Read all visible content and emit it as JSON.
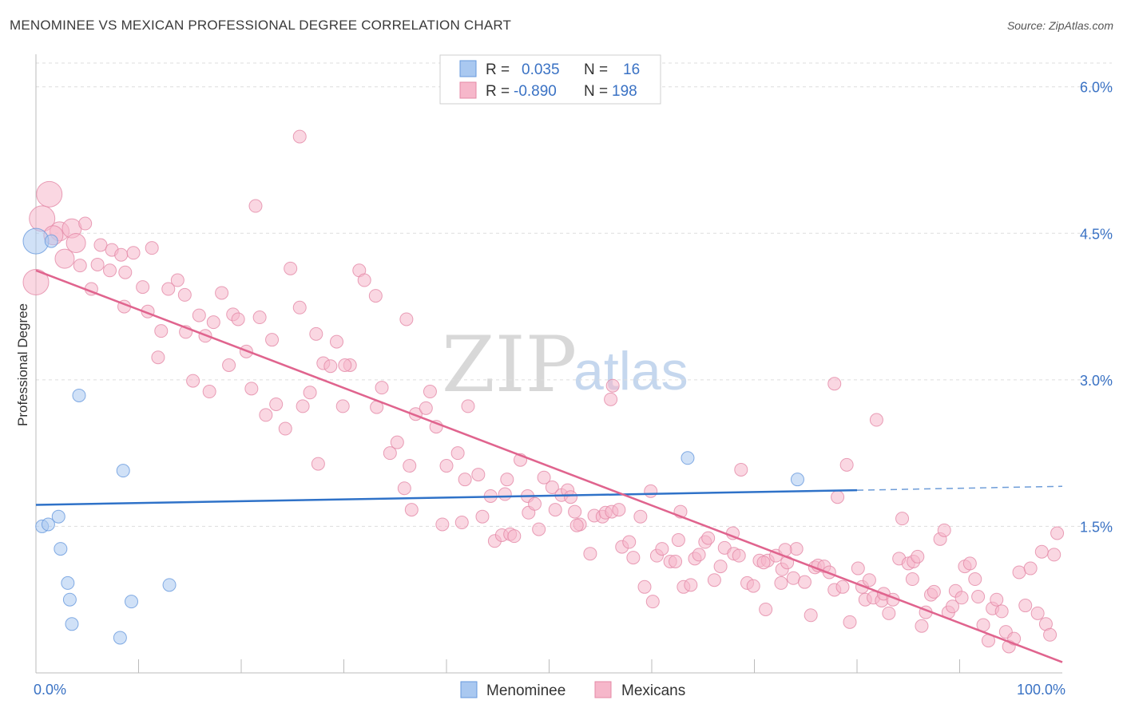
{
  "title": "MENOMINEE VS MEXICAN PROFESSIONAL DEGREE CORRELATION CHART",
  "source": "Source: ZipAtlas.com",
  "watermark": {
    "part1": "ZIP",
    "part2": "atlas"
  },
  "legend_stats": [
    {
      "r_label": "R =",
      "r_value": "0.035",
      "n_label": "N =",
      "n_value": "16",
      "color": "#a9c8f0",
      "stroke": "#6699dd"
    },
    {
      "r_label": "R =",
      "r_value": "-0.890",
      "n_label": "N =",
      "n_value": "198",
      "color": "#f6b7ca",
      "stroke": "#e488a6"
    }
  ],
  "legend_bottom": [
    {
      "label": "Menominee",
      "color": "#a9c8f0",
      "stroke": "#6699dd"
    },
    {
      "label": "Mexicans",
      "color": "#f6b7ca",
      "stroke": "#e488a6"
    }
  ],
  "chart_data": {
    "type": "scatter",
    "title": "MENOMINEE VS MEXICAN PROFESSIONAL DEGREE CORRELATION CHART",
    "xlabel": "",
    "ylabel": "Professional Degree",
    "xlim": [
      0,
      100
    ],
    "ylim": [
      0,
      6.3
    ],
    "x_tick_labels": [
      {
        "value": 0,
        "label": "0.0%"
      },
      {
        "value": 100,
        "label": "100.0%"
      }
    ],
    "y_tick_labels": [
      {
        "value": 1.5,
        "label": "1.5%"
      },
      {
        "value": 3.0,
        "label": "3.0%"
      },
      {
        "value": 4.5,
        "label": "4.5%"
      },
      {
        "value": 6.0,
        "label": "6.0%"
      }
    ],
    "x_minor_ticks": [
      10,
      20,
      30,
      40,
      50,
      60,
      70,
      80,
      90
    ],
    "grid": true,
    "series": [
      {
        "name": "Menominee",
        "color": "#a9c8f0",
        "stroke": "#6699dd",
        "trend": {
          "x0": 0,
          "y0": 1.72,
          "x1": 80,
          "y1": 1.87,
          "dash_to_x": 100,
          "dash_to_y": 1.91,
          "color": "#2f72c8"
        },
        "points": [
          [
            0,
            4.42,
            3
          ],
          [
            1.5,
            4.42,
            1
          ],
          [
            4.2,
            2.84,
            1
          ],
          [
            8.5,
            2.07,
            1
          ],
          [
            2.2,
            1.6,
            1
          ],
          [
            0.6,
            1.5,
            1
          ],
          [
            1.2,
            1.52,
            1
          ],
          [
            2.4,
            1.27,
            1
          ],
          [
            3.1,
            0.92,
            1
          ],
          [
            3.3,
            0.75,
            1
          ],
          [
            3.5,
            0.5,
            1
          ],
          [
            9.3,
            0.73,
            1
          ],
          [
            13,
            0.9,
            1
          ],
          [
            8.2,
            0.36,
            1
          ],
          [
            63.5,
            2.2,
            1
          ],
          [
            74.2,
            1.98,
            1
          ]
        ]
      },
      {
        "name": "Mexicans",
        "color": "#f6b7ca",
        "stroke": "#e488a6",
        "trend": {
          "x0": 0,
          "y0": 4.12,
          "x1": 100,
          "y1": 0.11,
          "color": "#e0648e"
        },
        "points": [
          [
            1.3,
            4.9,
            3
          ],
          [
            0.6,
            4.65,
            3
          ],
          [
            0,
            4.0,
            3
          ],
          [
            2.3,
            4.52,
            2
          ],
          [
            1.7,
            4.48,
            2
          ],
          [
            3.5,
            4.55,
            2
          ],
          [
            4.8,
            4.6,
            1
          ],
          [
            3.9,
            4.4,
            2
          ],
          [
            2.8,
            4.24,
            2
          ],
          [
            4.3,
            4.17,
            1
          ],
          [
            6.3,
            4.38,
            1
          ],
          [
            7.4,
            4.33,
            1
          ],
          [
            8.3,
            4.28,
            1
          ],
          [
            9.5,
            4.3,
            1
          ],
          [
            11.3,
            4.35,
            1
          ],
          [
            6.0,
            4.18,
            1
          ],
          [
            7.2,
            4.12,
            1
          ],
          [
            8.7,
            4.1,
            1
          ],
          [
            10.4,
            3.95,
            1
          ],
          [
            12.9,
            3.93,
            1
          ],
          [
            13.8,
            4.02,
            1
          ],
          [
            14.5,
            3.87,
            1
          ],
          [
            5.4,
            3.93,
            1
          ],
          [
            8.6,
            3.75,
            1
          ],
          [
            10.9,
            3.7,
            1
          ],
          [
            12.2,
            3.5,
            1
          ],
          [
            15.9,
            3.66,
            1
          ],
          [
            17.3,
            3.59,
            1
          ],
          [
            18.1,
            3.89,
            1
          ],
          [
            19.2,
            3.67,
            1
          ],
          [
            19.7,
            3.62,
            1
          ],
          [
            21.8,
            3.64,
            1
          ],
          [
            16.5,
            3.45,
            1
          ],
          [
            14.6,
            3.49,
            1
          ],
          [
            11.9,
            3.23,
            1
          ],
          [
            23.0,
            3.41,
            1
          ],
          [
            20.5,
            3.29,
            1
          ],
          [
            18.8,
            3.15,
            1
          ],
          [
            15.3,
            2.99,
            1
          ],
          [
            16.9,
            2.88,
            1
          ],
          [
            21.0,
            2.91,
            1
          ],
          [
            22.4,
            2.64,
            1
          ],
          [
            23.4,
            2.75,
            1
          ],
          [
            24.3,
            2.5,
            1
          ],
          [
            25.7,
            3.74,
            1
          ],
          [
            24.8,
            4.14,
            1
          ],
          [
            26.0,
            2.73,
            1
          ],
          [
            26.7,
            2.87,
            1
          ],
          [
            27.3,
            3.47,
            1
          ],
          [
            28.0,
            3.17,
            1
          ],
          [
            28.7,
            3.14,
            1
          ],
          [
            29.3,
            3.39,
            1
          ],
          [
            30.6,
            3.15,
            1
          ],
          [
            29.9,
            2.73,
            1
          ],
          [
            30.1,
            3.15,
            1
          ],
          [
            31.5,
            4.12,
            1
          ],
          [
            32.0,
            4.02,
            1
          ],
          [
            33.1,
            3.86,
            1
          ],
          [
            33.2,
            2.72,
            1
          ],
          [
            33.7,
            2.92,
            1
          ],
          [
            36.1,
            3.62,
            1
          ],
          [
            34.5,
            2.25,
            1
          ],
          [
            35.2,
            2.36,
            1
          ],
          [
            27.5,
            2.14,
            1
          ],
          [
            36.4,
            2.12,
            1
          ],
          [
            38.4,
            2.88,
            1
          ],
          [
            37.0,
            2.65,
            1
          ],
          [
            35.9,
            1.89,
            1
          ],
          [
            36.6,
            1.67,
            1
          ],
          [
            38.0,
            2.71,
            1
          ],
          [
            39.0,
            2.52,
            1
          ],
          [
            40.0,
            2.12,
            1
          ],
          [
            39.6,
            1.52,
            1
          ],
          [
            41.1,
            2.25,
            1
          ],
          [
            41.5,
            1.54,
            1
          ],
          [
            42.1,
            2.73,
            1
          ],
          [
            41.8,
            1.98,
            1
          ],
          [
            43.1,
            2.03,
            1
          ],
          [
            43.5,
            1.6,
            1
          ],
          [
            44.3,
            1.81,
            1
          ],
          [
            44.7,
            1.35,
            1
          ],
          [
            45.4,
            1.41,
            1
          ],
          [
            45.9,
            1.98,
            1
          ],
          [
            45.7,
            1.83,
            1
          ],
          [
            46.2,
            1.42,
            1
          ],
          [
            46.6,
            1.4,
            1
          ],
          [
            47.2,
            2.18,
            1
          ],
          [
            48.0,
            1.64,
            1
          ],
          [
            47.9,
            1.81,
            1
          ],
          [
            48.6,
            1.73,
            1
          ],
          [
            49.0,
            1.47,
            1
          ],
          [
            49.5,
            2.0,
            1
          ],
          [
            50.3,
            1.9,
            1
          ],
          [
            50.6,
            1.67,
            1
          ],
          [
            51.2,
            1.82,
            1
          ],
          [
            51.8,
            1.87,
            1
          ],
          [
            52.1,
            1.8,
            1
          ],
          [
            52.5,
            1.65,
            1
          ],
          [
            53.0,
            1.52,
            1
          ],
          [
            54.0,
            1.22,
            1
          ],
          [
            54.4,
            1.61,
            1
          ],
          [
            55.2,
            1.6,
            1
          ],
          [
            55.5,
            1.64,
            1
          ],
          [
            56.1,
            1.65,
            1
          ],
          [
            56.8,
            1.67,
            1
          ],
          [
            57.1,
            1.29,
            1
          ],
          [
            57.8,
            1.34,
            1
          ],
          [
            58.2,
            1.18,
            1
          ],
          [
            58.9,
            1.6,
            1
          ],
          [
            59.3,
            0.88,
            1
          ],
          [
            59.9,
            1.86,
            1
          ],
          [
            60.5,
            1.2,
            1
          ],
          [
            61.0,
            1.27,
            1
          ],
          [
            61.8,
            1.14,
            1
          ],
          [
            62.3,
            1.14,
            1
          ],
          [
            62.6,
            1.36,
            1
          ],
          [
            63.1,
            0.88,
            1
          ],
          [
            63.8,
            0.9,
            1
          ],
          [
            64.2,
            1.17,
            1
          ],
          [
            64.6,
            1.21,
            1
          ],
          [
            65.2,
            1.34,
            1
          ],
          [
            65.5,
            1.38,
            1
          ],
          [
            66.1,
            0.95,
            1
          ],
          [
            66.7,
            1.09,
            1
          ],
          [
            67.1,
            1.28,
            1
          ],
          [
            67.9,
            1.43,
            1
          ],
          [
            68.0,
            1.22,
            1
          ],
          [
            68.5,
            1.2,
            1
          ],
          [
            68.7,
            2.08,
            1
          ],
          [
            69.3,
            0.92,
            1
          ],
          [
            69.9,
            0.89,
            1
          ],
          [
            70.5,
            1.15,
            1
          ],
          [
            71.1,
            0.65,
            1
          ],
          [
            71.3,
            1.15,
            1
          ],
          [
            72.1,
            1.2,
            1
          ],
          [
            72.7,
            1.06,
            1
          ],
          [
            72.6,
            0.92,
            1
          ],
          [
            73.2,
            1.13,
            1
          ],
          [
            73.8,
            0.97,
            1
          ],
          [
            74.1,
            1.27,
            1
          ],
          [
            74.9,
            0.93,
            1
          ],
          [
            75.5,
            0.59,
            1
          ],
          [
            75.9,
            1.08,
            1
          ],
          [
            76.2,
            1.1,
            1
          ],
          [
            76.8,
            1.09,
            1
          ],
          [
            77.3,
            1.03,
            1
          ],
          [
            77.8,
            0.85,
            1
          ],
          [
            78.1,
            1.8,
            1
          ],
          [
            78.6,
            0.88,
            1
          ],
          [
            79.0,
            2.13,
            1
          ],
          [
            79.3,
            0.52,
            1
          ],
          [
            80.1,
            1.07,
            1
          ],
          [
            80.5,
            0.88,
            1
          ],
          [
            80.8,
            0.75,
            1
          ],
          [
            81.2,
            0.95,
            1
          ],
          [
            81.6,
            0.77,
            1
          ],
          [
            82.4,
            0.74,
            1
          ],
          [
            82.6,
            0.81,
            1
          ],
          [
            83.1,
            0.61,
            1
          ],
          [
            83.5,
            0.75,
            1
          ],
          [
            84.4,
            1.58,
            1
          ],
          [
            84.1,
            1.17,
            1
          ],
          [
            85.0,
            1.12,
            1
          ],
          [
            85.5,
            1.14,
            1
          ],
          [
            85.9,
            1.19,
            1
          ],
          [
            85.4,
            0.96,
            1
          ],
          [
            86.3,
            0.48,
            1
          ],
          [
            86.7,
            0.62,
            1
          ],
          [
            87.2,
            0.8,
            1
          ],
          [
            87.5,
            0.83,
            1
          ],
          [
            88.1,
            1.37,
            1
          ],
          [
            88.5,
            1.46,
            1
          ],
          [
            88.9,
            0.62,
            1
          ],
          [
            89.3,
            0.68,
            1
          ],
          [
            89.6,
            0.84,
            1
          ],
          [
            90.2,
            0.77,
            1
          ],
          [
            90.5,
            1.09,
            1
          ],
          [
            91.0,
            1.12,
            1
          ],
          [
            91.5,
            0.96,
            1
          ],
          [
            91.8,
            0.78,
            1
          ],
          [
            92.3,
            0.49,
            1
          ],
          [
            92.8,
            0.33,
            1
          ],
          [
            93.2,
            0.66,
            1
          ],
          [
            93.6,
            0.75,
            1
          ],
          [
            94.1,
            0.63,
            1
          ],
          [
            94.5,
            0.42,
            1
          ],
          [
            94.8,
            0.27,
            1
          ],
          [
            95.3,
            0.35,
            1
          ],
          [
            95.8,
            1.03,
            1
          ],
          [
            96.4,
            0.69,
            1
          ],
          [
            96.9,
            1.07,
            1
          ],
          [
            97.6,
            0.61,
            1
          ],
          [
            98.0,
            1.24,
            1
          ],
          [
            98.4,
            0.5,
            1
          ],
          [
            98.8,
            0.39,
            1
          ],
          [
            99.2,
            1.21,
            1
          ],
          [
            99.5,
            1.43,
            1
          ],
          [
            73.0,
            1.26,
            1
          ],
          [
            70.9,
            1.13,
            1
          ],
          [
            60.1,
            0.73,
            1
          ],
          [
            56.0,
            2.8,
            1
          ],
          [
            56.2,
            2.94,
            1
          ],
          [
            25.7,
            5.49,
            1
          ],
          [
            21.4,
            4.78,
            1
          ],
          [
            77.8,
            2.96,
            1
          ],
          [
            81.9,
            2.59,
            1
          ],
          [
            62.8,
            1.65,
            1
          ],
          [
            52.7,
            1.51,
            1
          ]
        ]
      }
    ],
    "legend": "top-center"
  }
}
